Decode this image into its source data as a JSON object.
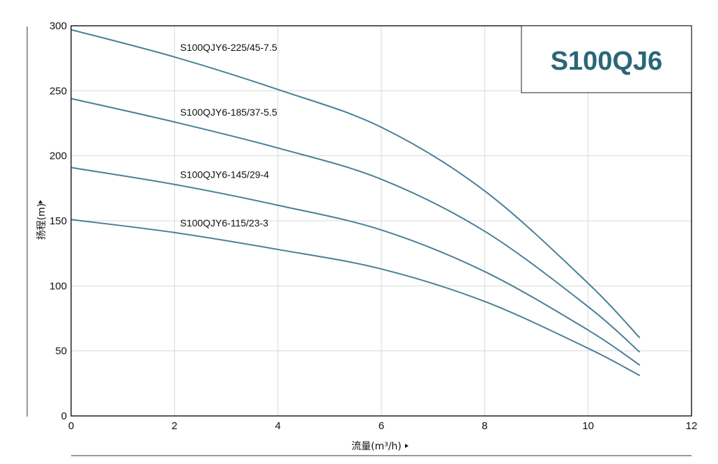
{
  "chart_data": {
    "type": "line",
    "title": "S100QJ6",
    "xlabel": "流量(m³/h)",
    "ylabel": "扬程(m)",
    "xlim": [
      0,
      12
    ],
    "ylim": [
      0,
      300
    ],
    "x_ticks": [
      "0",
      "2",
      "4",
      "6",
      "8",
      "10",
      "12"
    ],
    "y_ticks": [
      "0",
      "50",
      "100",
      "150",
      "200",
      "250",
      "300"
    ],
    "grid": true,
    "colors": {
      "line": "#4a7f96",
      "title": "#2a6678",
      "grid": "#d9d9d9",
      "frame": "#222222"
    },
    "series": [
      {
        "name": "S100QJY6-225/45-7.5",
        "x": [
          0,
          2,
          4,
          6,
          8,
          10,
          11
        ],
        "y": [
          297,
          276,
          251,
          222,
          173,
          102,
          60
        ]
      },
      {
        "name": "S100QJY6-185/37-5.5",
        "x": [
          0,
          2,
          4,
          6,
          8,
          10,
          11
        ],
        "y": [
          244,
          226,
          206,
          182,
          142,
          84,
          49
        ]
      },
      {
        "name": "S100QJY6-145/29-4",
        "x": [
          0,
          2,
          4,
          6,
          8,
          10,
          11
        ],
        "y": [
          191,
          178,
          162,
          143,
          111,
          66,
          39
        ]
      },
      {
        "name": "S100QJY6-115/23-3",
        "x": [
          0,
          2,
          4,
          6,
          8,
          10,
          11
        ],
        "y": [
          151,
          141,
          128,
          113,
          88,
          52,
          31
        ]
      }
    ]
  }
}
